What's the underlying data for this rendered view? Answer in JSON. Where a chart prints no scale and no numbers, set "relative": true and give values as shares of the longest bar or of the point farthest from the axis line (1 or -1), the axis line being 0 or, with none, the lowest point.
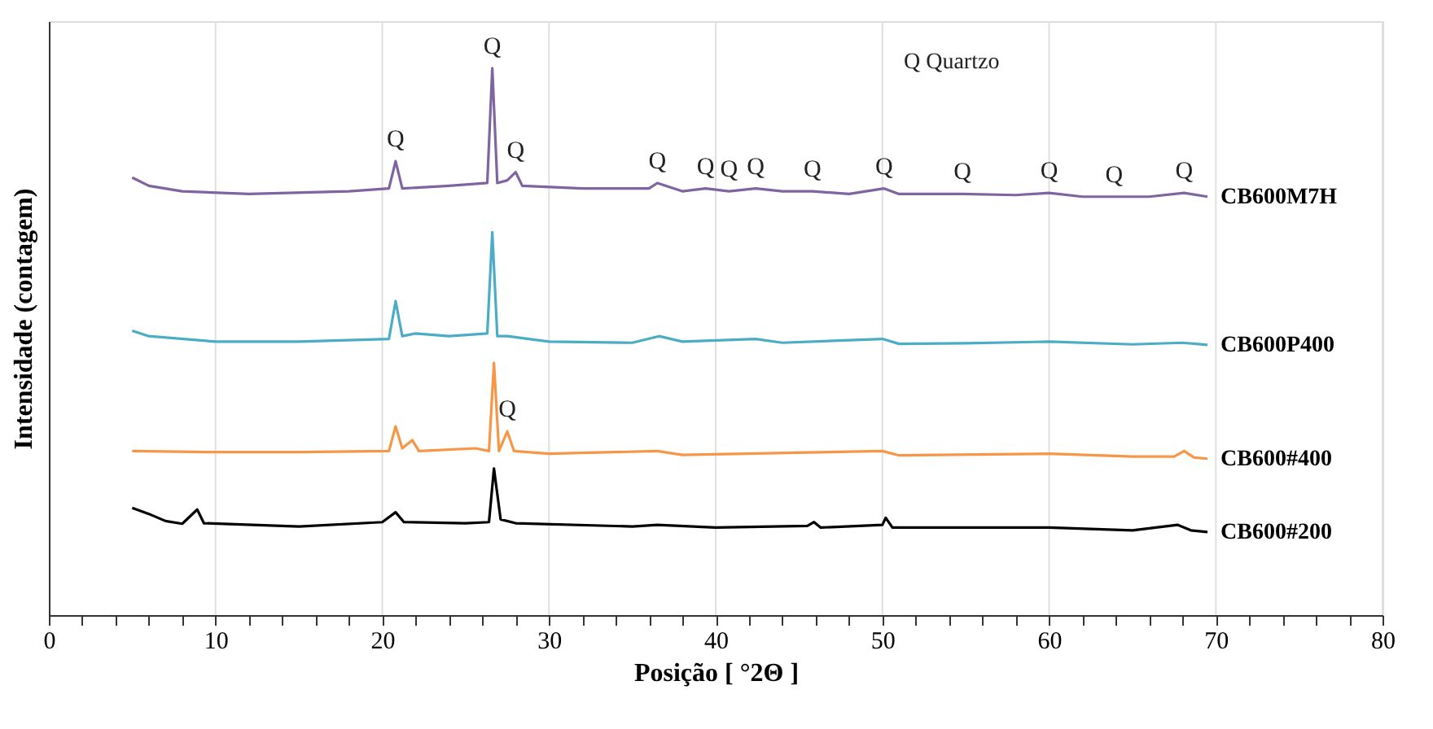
{
  "chart_data": {
    "type": "line",
    "relative": true,
    "xlabel": "Posição [ °2Θ ]",
    "ylabel": "Intensidade (contagem)",
    "xlim": [
      0,
      80
    ],
    "xticks": [
      0,
      {
        "value": 2,
        "label": null
      },
      {
        "value": 4,
        "label": null
      },
      {
        "value": 6,
        "label": null
      },
      {
        "value": 8,
        "label": null
      },
      10,
      {
        "value": 12,
        "label": null
      },
      {
        "value": 14,
        "label": null
      },
      {
        "value": 16,
        "label": null
      },
      {
        "value": 18,
        "label": null
      },
      20,
      {
        "value": 22,
        "label": null
      },
      {
        "value": 24,
        "label": null
      },
      {
        "value": 26,
        "label": null
      },
      {
        "value": 28,
        "label": null
      },
      30,
      {
        "value": 32,
        "label": null
      },
      {
        "value": 34,
        "label": null
      },
      {
        "value": 36,
        "label": null
      },
      {
        "value": 38,
        "label": null
      },
      40,
      {
        "value": 42,
        "label": null
      },
      {
        "value": 44,
        "label": null
      },
      {
        "value": 46,
        "label": null
      },
      {
        "value": 48,
        "label": null
      },
      50,
      {
        "value": 52,
        "label": null
      },
      {
        "value": 54,
        "label": null
      },
      {
        "value": 56,
        "label": null
      },
      {
        "value": 58,
        "label": null
      },
      60,
      {
        "value": 62,
        "label": null
      },
      {
        "value": 64,
        "label": null
      },
      {
        "value": 66,
        "label": null
      },
      {
        "value": 68,
        "label": null
      },
      70,
      {
        "value": 72,
        "label": null
      },
      {
        "value": 74,
        "label": null
      },
      {
        "value": 76,
        "label": null
      },
      {
        "value": 78,
        "label": null
      },
      80
    ],
    "grid": "x",
    "legend": false,
    "marker": "none",
    "line_style": "solid",
    "series": [
      {
        "name": "CB600M7H",
        "color": "#8064a2",
        "x": [
          5,
          6,
          8,
          12,
          18,
          20.4,
          20.8,
          21.2,
          24,
          26.3,
          26.6,
          26.9,
          27.5,
          28.0,
          28.4,
          32,
          36,
          36.5,
          38,
          39.4,
          40.8,
          42.4,
          44,
          45.8,
          48,
          50.1,
          51,
          54.8,
          58,
          60,
          62,
          63.9,
          66,
          68.1,
          69.5
        ],
        "values": [
          0.8,
          0.785,
          0.775,
          0.77,
          0.775,
          0.78,
          0.83,
          0.78,
          0.785,
          0.79,
          1.0,
          0.79,
          0.795,
          0.81,
          0.785,
          0.78,
          0.78,
          0.79,
          0.775,
          0.78,
          0.775,
          0.78,
          0.775,
          0.775,
          0.77,
          0.78,
          0.77,
          0.77,
          0.768,
          0.772,
          0.765,
          0.765,
          0.765,
          0.772,
          0.765
        ]
      },
      {
        "name": "CB600P400",
        "color": "#4bacc6",
        "x": [
          5,
          6,
          10,
          15,
          20.4,
          20.8,
          21.2,
          22,
          24,
          26.3,
          26.6,
          26.9,
          27.5,
          30,
          35,
          36.6,
          38,
          42.4,
          44,
          50,
          51,
          55,
          60,
          65,
          68,
          69.5
        ],
        "values": [
          0.52,
          0.51,
          0.5,
          0.5,
          0.505,
          0.574,
          0.51,
          0.515,
          0.51,
          0.515,
          0.7,
          0.51,
          0.51,
          0.5,
          0.498,
          0.51,
          0.5,
          0.505,
          0.498,
          0.505,
          0.496,
          0.497,
          0.5,
          0.495,
          0.498,
          0.494
        ]
      },
      {
        "name": "CB600#400",
        "color": "#f79646",
        "x": [
          5,
          10,
          15,
          20.4,
          20.8,
          21.2,
          21.8,
          22.2,
          25.6,
          26.4,
          26.7,
          27.0,
          27.5,
          27.9,
          30,
          36.5,
          38,
          50,
          51,
          60,
          65,
          67.5,
          68.1,
          68.7,
          69.5
        ],
        "values": [
          0.3,
          0.298,
          0.298,
          0.3,
          0.345,
          0.305,
          0.32,
          0.3,
          0.305,
          0.3,
          0.461,
          0.3,
          0.336,
          0.3,
          0.295,
          0.3,
          0.293,
          0.3,
          0.292,
          0.295,
          0.29,
          0.29,
          0.3,
          0.288,
          0.286
        ]
      },
      {
        "name": "CB600#200",
        "color": "#000000",
        "x": [
          5,
          6,
          7,
          8,
          8.9,
          9.3,
          15,
          20,
          20.8,
          21.3,
          25,
          26.4,
          26.7,
          27.1,
          28,
          35,
          36.5,
          40,
          45.5,
          45.9,
          46.3,
          50,
          50.2,
          50.6,
          60,
          65,
          67.7,
          68.5,
          69.5
        ],
        "values": [
          0.196,
          0.185,
          0.172,
          0.167,
          0.193,
          0.168,
          0.162,
          0.17,
          0.188,
          0.17,
          0.168,
          0.17,
          0.268,
          0.175,
          0.168,
          0.162,
          0.165,
          0.16,
          0.163,
          0.17,
          0.16,
          0.165,
          0.178,
          0.16,
          0.16,
          0.155,
          0.165,
          0.155,
          0.152
        ]
      }
    ],
    "annotations": [
      {
        "text": "Q",
        "x": 20.8,
        "y": 0.83
      },
      {
        "text": "Q",
        "x": 26.6,
        "y": 1.0
      },
      {
        "text": "Q",
        "x": 28.0,
        "y": 0.81
      },
      {
        "text": "Q",
        "x": 36.5,
        "y": 0.79
      },
      {
        "text": "Q",
        "x": 39.4,
        "y": 0.78
      },
      {
        "text": "Q",
        "x": 40.8,
        "y": 0.775
      },
      {
        "text": "Q",
        "x": 42.4,
        "y": 0.78
      },
      {
        "text": "Q",
        "x": 45.8,
        "y": 0.775
      },
      {
        "text": "Q",
        "x": 50.1,
        "y": 0.78
      },
      {
        "text": "Q",
        "x": 54.8,
        "y": 0.77
      },
      {
        "text": "Q",
        "x": 60,
        "y": 0.772
      },
      {
        "text": "Q",
        "x": 63.9,
        "y": 0.765
      },
      {
        "text": "Q",
        "x": 68.1,
        "y": 0.772
      },
      {
        "text": "Q",
        "x": 27.5,
        "y": 0.336
      },
      "Q  Quartzo"
    ]
  }
}
